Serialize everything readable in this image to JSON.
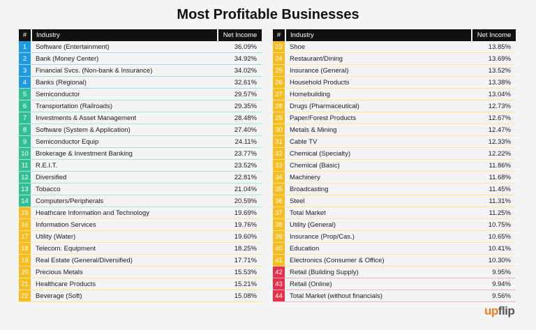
{
  "chart_data": {
    "type": "table",
    "title": "Most Profitable Businesses",
    "columns": [
      "#",
      "Industry",
      "Net Income"
    ],
    "group_colors": {
      "blue": "#1e9be0",
      "teal": "#33bf94",
      "yellow": "#f7bc1e",
      "red": "#e8304a"
    },
    "rows": [
      [
        "1",
        "Software (Entertainment)",
        "36.09%",
        "blue"
      ],
      [
        "2",
        "Bank (Money Center)",
        "34.92%",
        "blue"
      ],
      [
        "3",
        "Financial Svcs. (Non-bank & Insurance)",
        "34.02%",
        "blue"
      ],
      [
        "4",
        "Banks (Regional)",
        "32.61%",
        "blue"
      ],
      [
        "5",
        "Semiconductor",
        "29.57%",
        "teal"
      ],
      [
        "6",
        "Transportation (Railroads)",
        "29.35%",
        "teal"
      ],
      [
        "7",
        "Investments & Asset Management",
        "28.48%",
        "teal"
      ],
      [
        "8",
        "Software (System & Application)",
        "27.40%",
        "teal"
      ],
      [
        "9",
        "Semiconductor Equip",
        "24.11%",
        "teal"
      ],
      [
        "10",
        "Brokerage & Investment Banking",
        "23.77%",
        "teal"
      ],
      [
        "11",
        "R.E.I.T.",
        "23.52%",
        "teal"
      ],
      [
        "12",
        "Diversified",
        "22.81%",
        "teal"
      ],
      [
        "13",
        "Tobacco",
        "21.04%",
        "teal"
      ],
      [
        "14",
        "Computers/Peripherals",
        "20.59%",
        "teal"
      ],
      [
        "15",
        "Heathcare Information and Technology",
        "19.69%",
        "yellow"
      ],
      [
        "16",
        "Information Services",
        "19.76%",
        "yellow"
      ],
      [
        "17",
        "Utility (Water)",
        "19.60%",
        "yellow"
      ],
      [
        "18",
        "Telecom. Equipment",
        "18.25%",
        "yellow"
      ],
      [
        "19",
        "Real Estate (General/Diversified)",
        "17.71%",
        "yellow"
      ],
      [
        "20",
        "Precious Metals",
        "15.53%",
        "yellow"
      ],
      [
        "21",
        "Healthcare Products",
        "15.21%",
        "yellow"
      ],
      [
        "22",
        "Beverage (Soft)",
        "15.08%",
        "yellow"
      ],
      [
        "23",
        "Shoe",
        "13.85%",
        "yellow"
      ],
      [
        "24",
        "Restaurant/Dining",
        "13.69%",
        "yellow"
      ],
      [
        "25",
        "Insurance (General)",
        "13.52%",
        "yellow"
      ],
      [
        "26",
        "Household Products",
        "13.38%",
        "yellow"
      ],
      [
        "27",
        "Homebuilding",
        "13.04%",
        "yellow"
      ],
      [
        "28",
        "Drugs (Pharmaceutical)",
        "12.73%",
        "yellow"
      ],
      [
        "29",
        "Paper/Forest Products",
        "12.67%",
        "yellow"
      ],
      [
        "30",
        "Metals & Mining",
        "12.47%",
        "yellow"
      ],
      [
        "31",
        "Cable TV",
        "12.33%",
        "yellow"
      ],
      [
        "32",
        "Chemical (Specialty)",
        "12.22%",
        "yellow"
      ],
      [
        "33",
        "Chemical (Basic)",
        "11.86%",
        "yellow"
      ],
      [
        "34",
        "Machinery",
        "11.68%",
        "yellow"
      ],
      [
        "35",
        "Broadcasting",
        "11.45%",
        "yellow"
      ],
      [
        "36",
        "Steel",
        "11.31%",
        "yellow"
      ],
      [
        "37",
        "Total Market",
        "11.25%",
        "yellow"
      ],
      [
        "38",
        "Utility (General)",
        "10.75%",
        "yellow"
      ],
      [
        "39",
        "Insurance (Prop/Cas.)",
        "10.65%",
        "yellow"
      ],
      [
        "40",
        "Education",
        "10.41%",
        "yellow"
      ],
      [
        "41",
        "Electronics (Consumer & Office)",
        "10.30%",
        "yellow"
      ],
      [
        "42",
        "Retail (Building Supply)",
        "9.95%",
        "red"
      ],
      [
        "43",
        "Retail (Online)",
        "9.94%",
        "red"
      ],
      [
        "44",
        "Total Market (without financials)",
        "9.56%",
        "red"
      ]
    ]
  },
  "logo": {
    "part1": "up",
    "part2": "flip"
  }
}
